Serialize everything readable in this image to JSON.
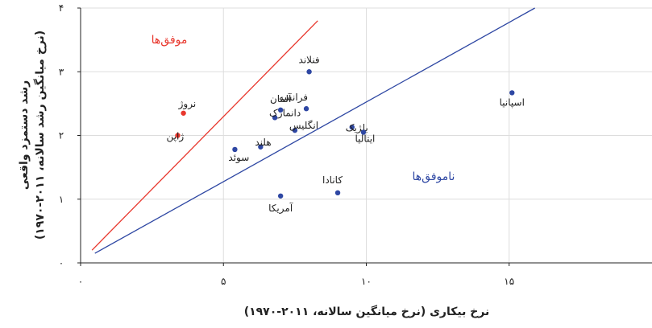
{
  "chart_data": {
    "type": "scatter",
    "xlabel": "نرخ بیکاری (نرخ میانگین سالانه، ۲۰۱۱-۱۹۷۰)",
    "ylabel_line1": "رشد دستمزد واقعی",
    "ylabel_line2": "(نرخ میانگین رشد سالانه، ۲۰۱۱-۱۹۷۰)",
    "xlim": [
      0,
      20
    ],
    "ylim": [
      0,
      4
    ],
    "xticks": [
      {
        "v": 0,
        "label": "۰"
      },
      {
        "v": 5,
        "label": "۵"
      },
      {
        "v": 10,
        "label": "۱۰"
      },
      {
        "v": 15,
        "label": "۱۵"
      }
    ],
    "yticks": [
      {
        "v": 0,
        "label": "۰"
      },
      {
        "v": 1,
        "label": "۱"
      },
      {
        "v": 2,
        "label": "۲"
      },
      {
        "v": 3,
        "label": "۳"
      },
      {
        "v": 4,
        "label": "۴"
      }
    ],
    "grid": true,
    "colors": {
      "successful": "#e8372d",
      "unsuccessful": "#2e47a3",
      "grid": "#dddddd",
      "axis": "#222222"
    },
    "regions": {
      "successful": "موفق‌ها",
      "unsuccessful": "ناموفق‌ها"
    },
    "lines": [
      {
        "group": "successful",
        "x": [
          0.4,
          8.3
        ],
        "y": [
          0.2,
          3.8
        ]
      },
      {
        "group": "unsuccessful",
        "x": [
          0.5,
          15.9
        ],
        "y": [
          0.15,
          4.0
        ]
      }
    ],
    "points": [
      {
        "label": "نروژ",
        "x": 3.6,
        "y": 2.35,
        "group": "successful"
      },
      {
        "label": "ژاپن",
        "x": 3.4,
        "y": 2.0,
        "group": "successful"
      },
      {
        "label": "فنلاند",
        "x": 8.0,
        "y": 3.0,
        "group": "unsuccessful"
      },
      {
        "label": "فرانسه",
        "x": 7.9,
        "y": 2.42,
        "group": "unsuccessful"
      },
      {
        "label": "آلمان",
        "x": 7.0,
        "y": 2.4,
        "group": "unsuccessful"
      },
      {
        "label": "دانمارک",
        "x": 6.8,
        "y": 2.28,
        "group": "unsuccessful"
      },
      {
        "label": "انگلیس",
        "x": 7.5,
        "y": 2.08,
        "group": "unsuccessful"
      },
      {
        "label": "هلند",
        "x": 6.3,
        "y": 1.82,
        "group": "unsuccessful"
      },
      {
        "label": "سوئد",
        "x": 5.4,
        "y": 1.78,
        "group": "unsuccessful"
      },
      {
        "label": "بلژیک",
        "x": 9.5,
        "y": 2.13,
        "group": "unsuccessful"
      },
      {
        "label": "ایتالیا",
        "x": 9.9,
        "y": 2.05,
        "group": "unsuccessful"
      },
      {
        "label": "اسپانیا",
        "x": 15.1,
        "y": 2.67,
        "group": "unsuccessful"
      },
      {
        "label": "کانادا",
        "x": 9.0,
        "y": 1.1,
        "group": "unsuccessful"
      },
      {
        "label": "آمریکا",
        "x": 7.0,
        "y": 1.05,
        "group": "unsuccessful"
      }
    ]
  }
}
